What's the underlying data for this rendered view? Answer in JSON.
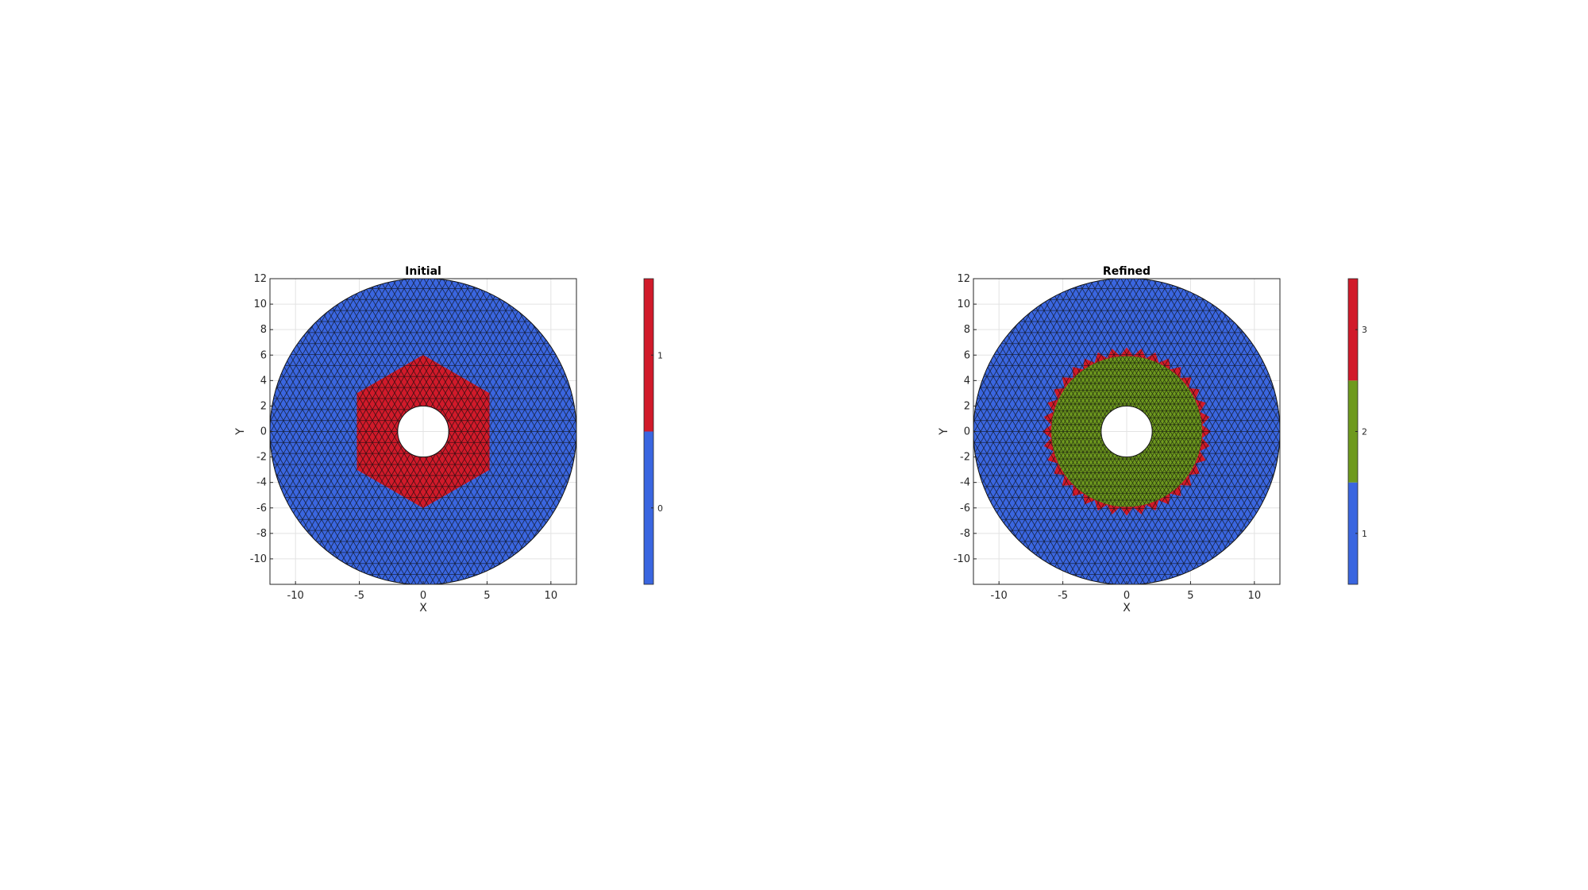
{
  "chart_data": [
    {
      "type": "mesh",
      "title": "Initial",
      "xlabel": "X",
      "ylabel": "Y",
      "xlim": [
        -12,
        12
      ],
      "ylim": [
        -12,
        12
      ],
      "xticks": [
        -10,
        -5,
        0,
        5,
        10
      ],
      "yticks": [
        -10,
        -8,
        -6,
        -4,
        -2,
        0,
        2,
        4,
        6,
        8,
        10,
        12
      ],
      "grid": true,
      "domain": {
        "outer_radius": 12,
        "hole_radius": 2
      },
      "regions": [
        {
          "label": 0,
          "color": "#3a66e0",
          "shape": "disk",
          "radius": 12
        },
        {
          "label": 1,
          "color": "#d11a2a",
          "shape": "hexagon",
          "radius": 6
        }
      ],
      "colorbar": {
        "labels": [
          "0",
          "1"
        ],
        "values": [
          0,
          1
        ],
        "colors": [
          "#3a66e0",
          "#d11a2a"
        ]
      }
    },
    {
      "type": "mesh",
      "title": "Refined",
      "xlabel": "X",
      "ylabel": "Y",
      "xlim": [
        -12,
        12
      ],
      "ylim": [
        -12,
        12
      ],
      "xticks": [
        -10,
        -5,
        0,
        5,
        10
      ],
      "yticks": [
        -10,
        -8,
        -6,
        -4,
        -2,
        0,
        2,
        4,
        6,
        8,
        10,
        12
      ],
      "grid": true,
      "domain": {
        "outer_radius": 12,
        "hole_radius": 2
      },
      "regions": [
        {
          "label": 1,
          "color": "#3a66e0",
          "shape": "disk",
          "radius": 12
        },
        {
          "label": 3,
          "color": "#d11a2a",
          "shape": "serrated-ring",
          "radius": 6.6
        },
        {
          "label": 2,
          "color": "#6e9a1e",
          "shape": "disk",
          "radius": 5.9
        }
      ],
      "colorbar": {
        "labels": [
          "1",
          "2",
          "3"
        ],
        "values": [
          1,
          2,
          3
        ],
        "colors": [
          "#3a66e0",
          "#6e9a1e",
          "#d11a2a"
        ]
      }
    }
  ]
}
